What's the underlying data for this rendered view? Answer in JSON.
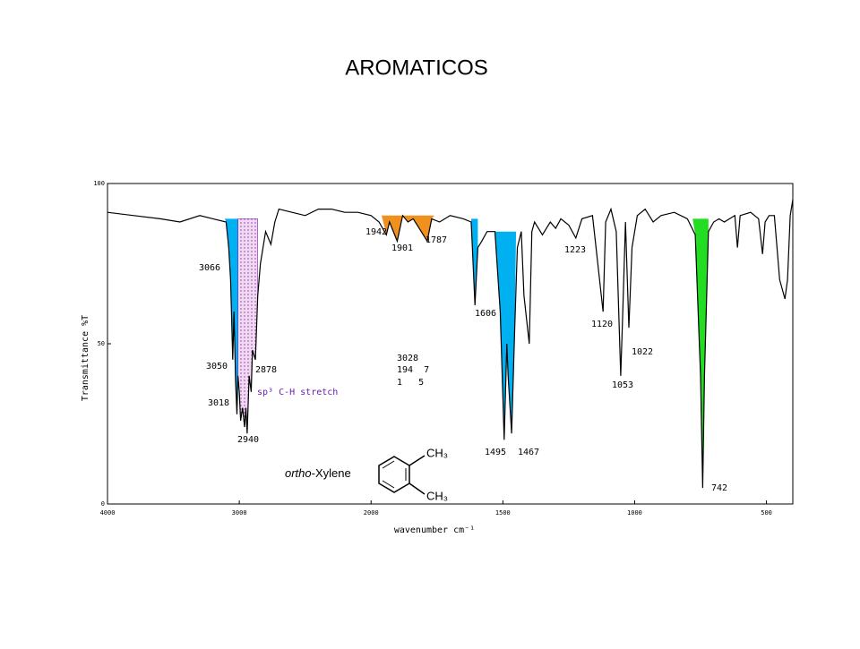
{
  "chart_data": {
    "type": "line",
    "title": "AROMATICOS",
    "xlabel": "wavenumber cm⁻¹",
    "ylabel": "Transmittance %T",
    "color": "#000000",
    "xlim": [
      4000,
      400
    ],
    "ylim": [
      0,
      100
    ],
    "xticks": [
      4000,
      3000,
      2000,
      1500,
      1000,
      500
    ],
    "yticks": [
      0,
      50,
      100
    ],
    "xbreak": 2000,
    "xbreak_factor": 2,
    "x": [
      4000,
      3800,
      3600,
      3450,
      3300,
      3200,
      3100,
      3080,
      3066,
      3050,
      3040,
      3028,
      3018,
      3010,
      3000,
      2990,
      2975,
      2960,
      2950,
      2940,
      2925,
      2910,
      2900,
      2878,
      2860,
      2840,
      2800,
      2760,
      2730,
      2700,
      2600,
      2500,
      2400,
      2300,
      2200,
      2100,
      2000,
      1970,
      1942,
      1930,
      1901,
      1880,
      1860,
      1840,
      1787,
      1770,
      1740,
      1700,
      1650,
      1620,
      1606,
      1595,
      1580,
      1560,
      1530,
      1510,
      1495,
      1485,
      1480,
      1467,
      1455,
      1445,
      1430,
      1420,
      1400,
      1390,
      1380,
      1350,
      1320,
      1300,
      1280,
      1250,
      1223,
      1200,
      1160,
      1120,
      1110,
      1090,
      1070,
      1053,
      1045,
      1035,
      1022,
      1010,
      990,
      960,
      930,
      900,
      850,
      800,
      770,
      750,
      742,
      735,
      720,
      700,
      680,
      660,
      640,
      620,
      610,
      600,
      560,
      530,
      515,
      505,
      490,
      470,
      450,
      430,
      420,
      410,
      400
    ],
    "values": [
      91,
      90,
      89,
      88,
      90,
      89,
      88,
      80,
      70,
      45,
      60,
      38,
      28,
      40,
      35,
      26,
      30,
      24,
      30,
      22,
      40,
      35,
      48,
      45,
      65,
      75,
      85,
      81,
      88,
      92,
      91,
      90,
      92,
      92,
      91,
      91,
      90,
      88,
      84,
      88,
      82,
      90,
      88,
      89,
      82,
      89,
      88,
      90,
      89,
      88,
      62,
      80,
      82,
      85,
      85,
      60,
      20,
      50,
      40,
      22,
      55,
      80,
      85,
      65,
      50,
      85,
      88,
      84,
      88,
      86,
      89,
      87,
      83,
      89,
      90,
      60,
      88,
      92,
      85,
      40,
      60,
      88,
      55,
      80,
      90,
      92,
      88,
      90,
      91,
      89,
      84,
      40,
      5,
      40,
      85,
      88,
      89,
      88,
      89,
      90,
      80,
      90,
      91,
      89,
      78,
      88,
      90,
      90,
      70,
      64,
      70,
      90,
      95
    ],
    "shaded_regions": [
      {
        "xlim": [
          3110,
          3010
        ],
        "level": 89,
        "color": "#00b0f0"
      },
      {
        "xlim": [
          3010,
          2860
        ],
        "level": 89,
        "color": "#e6b3ea"
      },
      {
        "xlim": [
          1960,
          1760
        ],
        "level": 90,
        "color": "#f0901e"
      },
      {
        "xlim": [
          1620,
          1595
        ],
        "level": 89,
        "color": "#00b0f0"
      },
      {
        "xlim": [
          1530,
          1450
        ],
        "level": 85,
        "color": "#00b0f0"
      },
      {
        "xlim": [
          780,
          720
        ],
        "level": 89,
        "color": "#22dd22"
      }
    ],
    "annotations": [
      "3066",
      "3050",
      "3018",
      "2940",
      "2878",
      "1942",
      "1901",
      "1787",
      "1606",
      "1495",
      "1467",
      "1223",
      "1120",
      "1053",
      "1022",
      "742",
      "3028",
      "194  7",
      "1   5"
    ],
    "note": "sp³ C-H stretch",
    "note_color": "#6a1fb0",
    "molecule": {
      "prefix": "ortho",
      "name": "-Xylene",
      "groups": [
        "CH₃",
        "CH₃"
      ]
    }
  }
}
